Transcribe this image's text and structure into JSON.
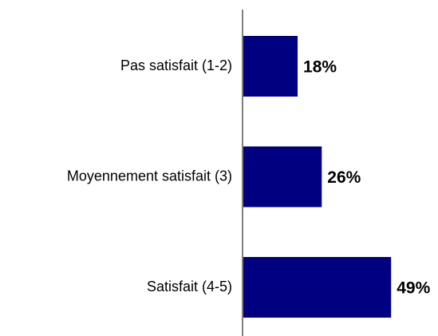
{
  "chart_data": {
    "type": "bar",
    "orientation": "horizontal",
    "categories": [
      "Pas satisfait (1-2)",
      "Moyennement satisfait (3)",
      "Satisfait (4-5)"
    ],
    "values": [
      18,
      26,
      49
    ],
    "value_labels": [
      "18%",
      "26%",
      "49%"
    ],
    "color": "#000080"
  }
}
